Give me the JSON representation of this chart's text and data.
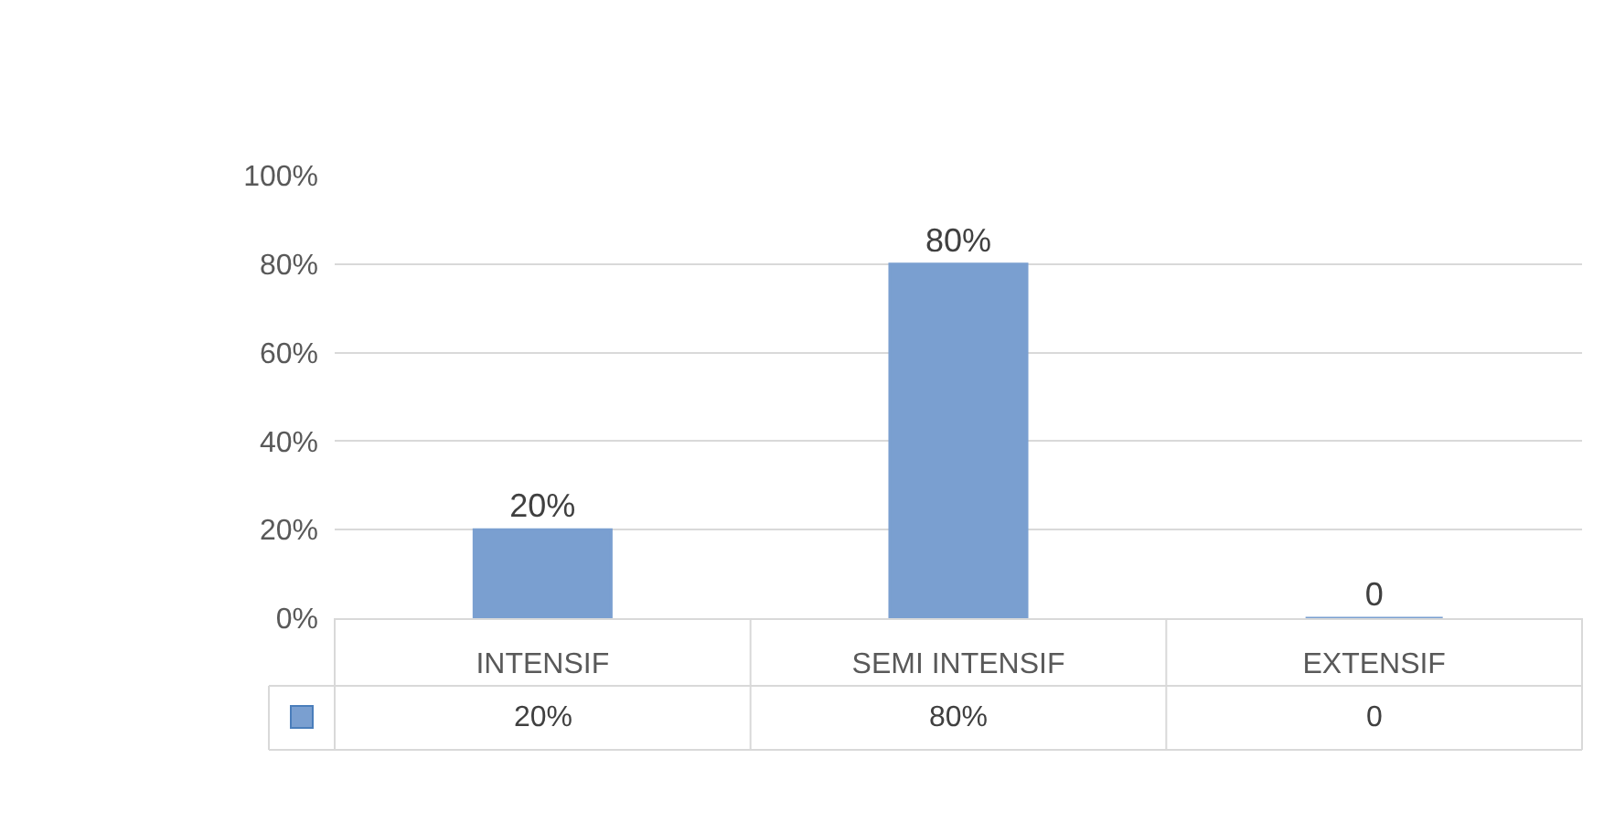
{
  "chart_data": {
    "type": "bar",
    "categories": [
      "INTENSIF",
      "SEMI INTENSIF",
      "EXTENSIF"
    ],
    "values": [
      20,
      80,
      0
    ],
    "value_labels": [
      "20%",
      "80%",
      "0"
    ],
    "color": "#7a9fd0",
    "ylim": [
      0,
      100
    ],
    "yticks": [
      {
        "value": 0,
        "label": "0%"
      },
      {
        "value": 20,
        "label": "20%"
      },
      {
        "value": 40,
        "label": "40%"
      },
      {
        "value": 60,
        "label": "60%"
      },
      {
        "value": 80,
        "label": "80%"
      },
      {
        "value": 100,
        "label": "100%"
      }
    ],
    "grid": "y",
    "legend": false
  }
}
